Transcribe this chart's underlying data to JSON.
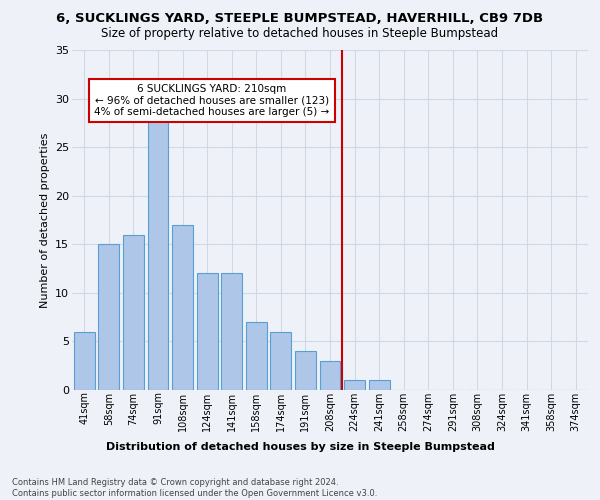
{
  "title1": "6, SUCKLINGS YARD, STEEPLE BUMPSTEAD, HAVERHILL, CB9 7DB",
  "title2": "Size of property relative to detached houses in Steeple Bumpstead",
  "xlabel": "Distribution of detached houses by size in Steeple Bumpstead",
  "ylabel": "Number of detached properties",
  "footnote": "Contains HM Land Registry data © Crown copyright and database right 2024.\nContains public sector information licensed under the Open Government Licence v3.0.",
  "bar_labels": [
    "41sqm",
    "58sqm",
    "74sqm",
    "91sqm",
    "108sqm",
    "124sqm",
    "141sqm",
    "158sqm",
    "174sqm",
    "191sqm",
    "208sqm",
    "224sqm",
    "241sqm",
    "258sqm",
    "274sqm",
    "291sqm",
    "308sqm",
    "324sqm",
    "341sqm",
    "358sqm",
    "374sqm"
  ],
  "bar_values": [
    6,
    15,
    16,
    28,
    17,
    12,
    12,
    7,
    6,
    4,
    3,
    1,
    1,
    0,
    0,
    0,
    0,
    0,
    0,
    0,
    0
  ],
  "bar_color": "#aec6e8",
  "bar_edge_color": "#5a9fd4",
  "grid_color": "#d0d8e8",
  "bg_color": "#eef2f8",
  "vline_x": 10.5,
  "vline_color": "#cc0000",
  "annotation_text": "6 SUCKLINGS YARD: 210sqm\n← 96% of detached houses are smaller (123)\n4% of semi-detached houses are larger (5) →",
  "annotation_box_color": "#cc0000",
  "ylim": [
    0,
    35
  ],
  "yticks": [
    0,
    5,
    10,
    15,
    20,
    25,
    30,
    35
  ]
}
